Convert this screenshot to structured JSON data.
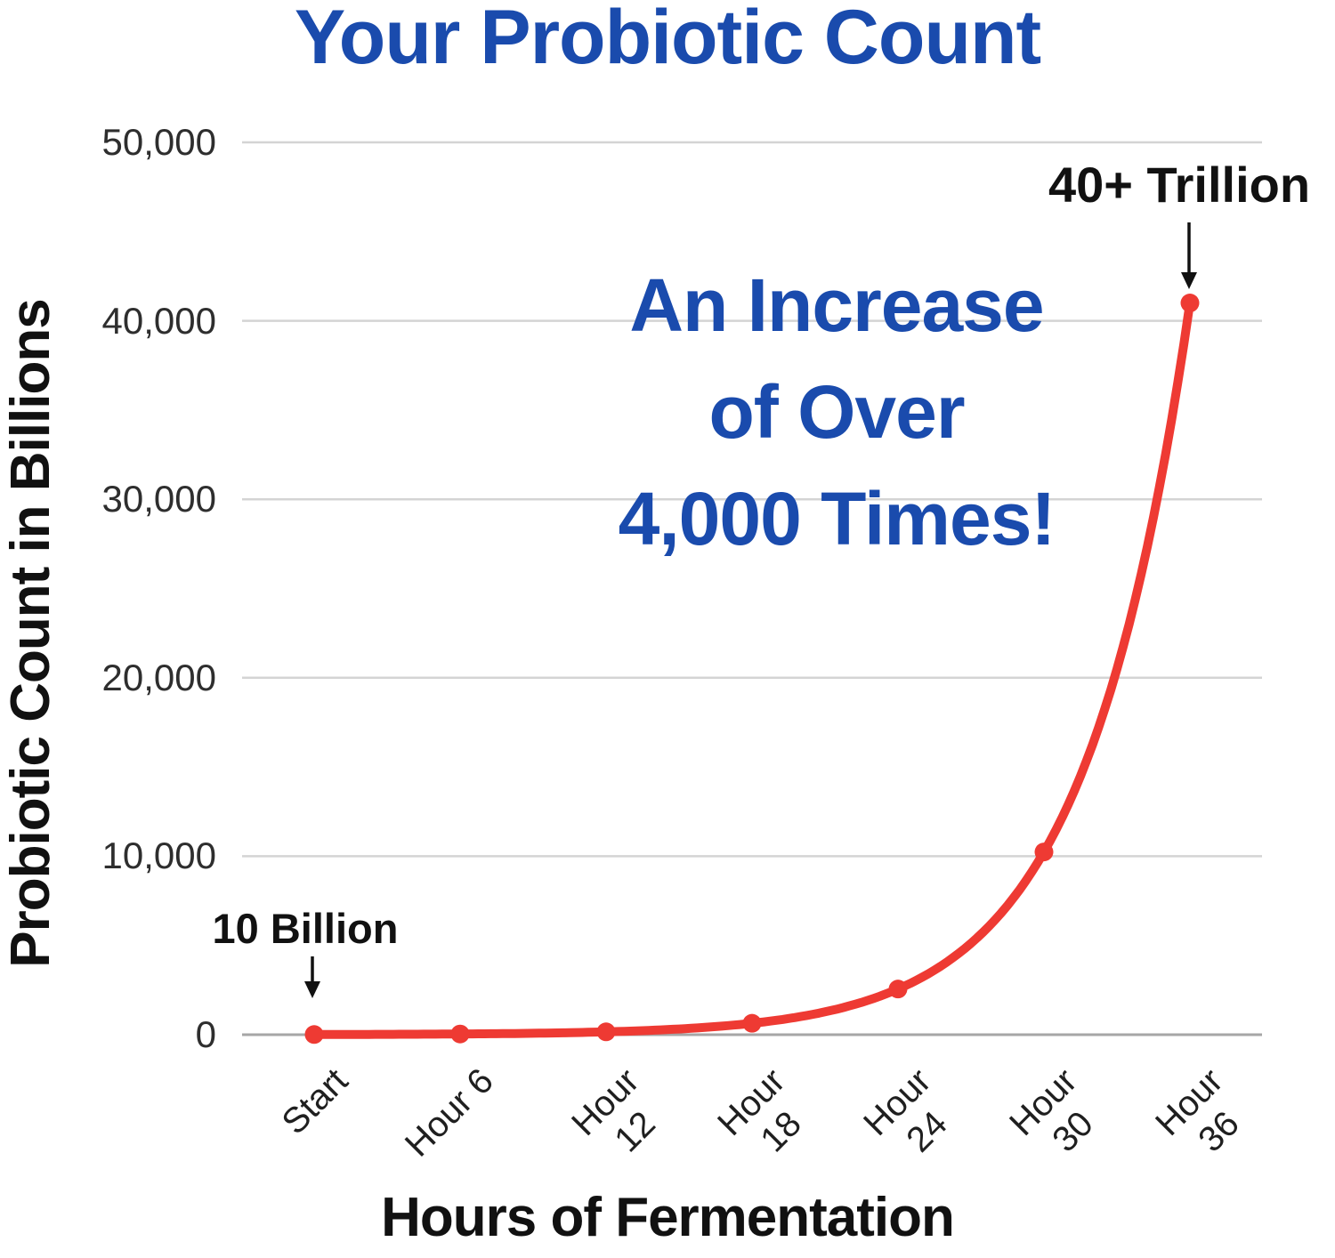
{
  "page": {
    "background": "#ffffff"
  },
  "chart_data": {
    "type": "line",
    "title": "Your Probiotic Count",
    "xlabel": "Hours of Fermentation",
    "ylabel": "Probiotic Count in Billions",
    "categories": [
      "Start",
      "Hour 6",
      "Hour\n12",
      "Hour\n18",
      "Hour\n24",
      "Hour\n30",
      "Hour\n36"
    ],
    "series": [
      {
        "name": "Probiotic Count",
        "values": [
          10,
          40,
          160,
          640,
          2560,
          10240,
          41000
        ]
      }
    ],
    "ylim": [
      0,
      50000
    ],
    "yticks": [
      0,
      10000,
      20000,
      30000,
      40000,
      50000
    ],
    "grid": "horizontal",
    "legend": "none",
    "marker": "circle",
    "curve": "exponential",
    "annotations": {
      "top": {
        "text": "40+ Trillion",
        "arrow": "down",
        "target": "last point"
      },
      "start": {
        "text": "10 Billion",
        "arrow": "down",
        "target": "first point"
      },
      "center_lines": [
        "An Increase",
        "of Over",
        "4,000 Times!"
      ]
    },
    "colors": {
      "line": "#ee3a33",
      "marker": "#ee3a33",
      "grid": "#d4d4d4",
      "axis": "#a6a6a6",
      "title": "#1a4bad",
      "center_annotation": "#1a4bad",
      "annotation_text": "#111111",
      "tick_text": "#2e2e2e",
      "arrow": "#111111"
    }
  }
}
